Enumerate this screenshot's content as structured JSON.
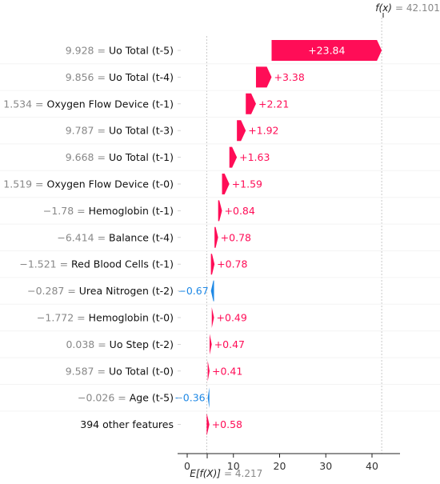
{
  "chart_data": {
    "type": "waterfall",
    "xlim": [
      -2,
      51
    ],
    "xticks": [
      0,
      10,
      20,
      30,
      40
    ],
    "base_value": 4.217,
    "base_label": "E[f(X)]",
    "base_value_text": "= 4.217",
    "output_value": 42.101,
    "output_label": "f(x)",
    "output_value_text": "= 42.101",
    "colors": {
      "positive": "#ff0d57",
      "negative": "#1e88e5"
    },
    "features": [
      {
        "value": "9.928",
        "name": "Uo Total (t-5)",
        "contribution": 23.84,
        "label": "+23.84"
      },
      {
        "value": "9.856",
        "name": "Uo Total (t-4)",
        "contribution": 3.38,
        "label": "+3.38"
      },
      {
        "value": "1.534",
        "name": "Oxygen Flow Device (t-1)",
        "contribution": 2.21,
        "label": "+2.21"
      },
      {
        "value": "9.787",
        "name": "Uo Total (t-3)",
        "contribution": 1.92,
        "label": "+1.92"
      },
      {
        "value": "9.668",
        "name": "Uo Total (t-1)",
        "contribution": 1.63,
        "label": "+1.63"
      },
      {
        "value": "1.519",
        "name": "Oxygen Flow Device (t-0)",
        "contribution": 1.59,
        "label": "+1.59"
      },
      {
        "value": "−1.78",
        "name": "Hemoglobin (t-1)",
        "contribution": 0.84,
        "label": "+0.84"
      },
      {
        "value": "−6.414",
        "name": "Balance (t-4)",
        "contribution": 0.78,
        "label": "+0.78"
      },
      {
        "value": "−1.521",
        "name": "Red Blood Cells (t-1)",
        "contribution": 0.78,
        "label": "+0.78"
      },
      {
        "value": "−0.287",
        "name": "Urea Nitrogen (t-2)",
        "contribution": -0.67,
        "label": "−0.67"
      },
      {
        "value": "−1.772",
        "name": "Hemoglobin (t-0)",
        "contribution": 0.49,
        "label": "+0.49"
      },
      {
        "value": "0.038",
        "name": "Uo Step (t-2)",
        "contribution": 0.47,
        "label": "+0.47"
      },
      {
        "value": "9.587",
        "name": "Uo Total (t-0)",
        "contribution": 0.41,
        "label": "+0.41"
      },
      {
        "value": "−0.026",
        "name": "Age (t-5)",
        "contribution": -0.36,
        "label": "−0.36"
      },
      {
        "value": "",
        "name": "394 other features",
        "contribution": 0.58,
        "label": "+0.58"
      }
    ]
  }
}
